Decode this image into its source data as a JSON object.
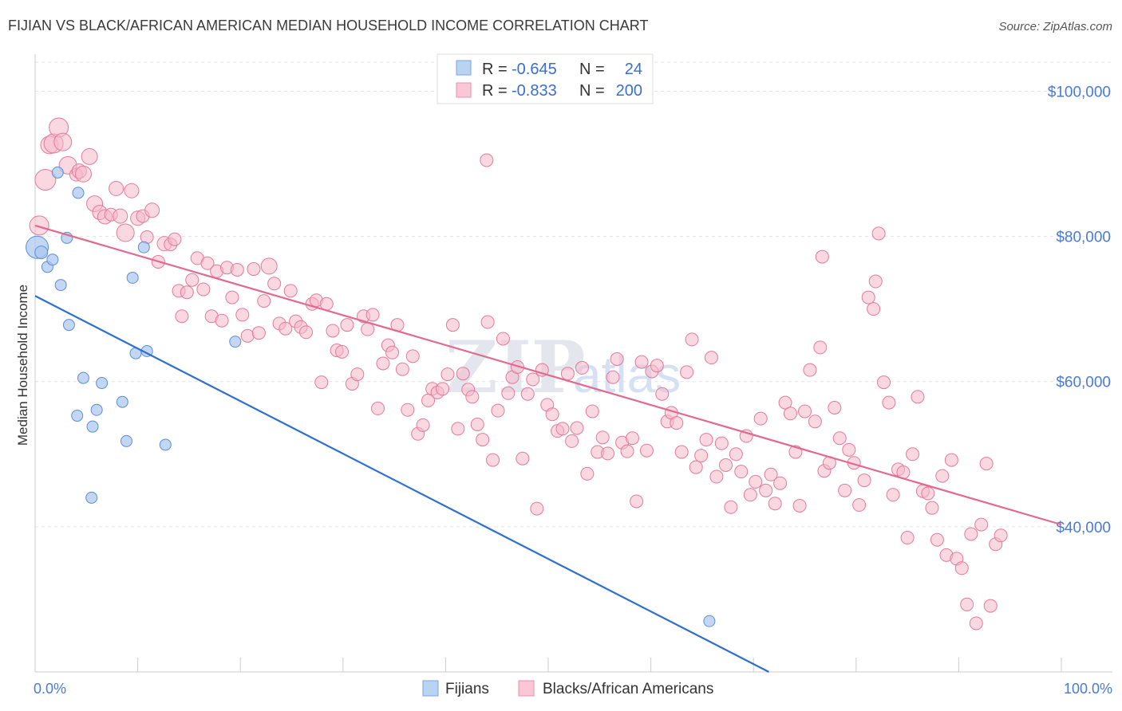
{
  "title": "FIJIAN VS BLACK/AFRICAN AMERICAN MEDIAN HOUSEHOLD INCOME CORRELATION CHART",
  "source": "Source: ZipAtlas.com",
  "watermark": {
    "zip": "ZIP",
    "atlas": "atlas"
  },
  "colors": {
    "fijians_fill": "#a9c6ef",
    "fijians_stroke": "#5b8fd6",
    "fijians_line": "#2f6fd0",
    "black_fill": "#f5b8cb",
    "black_stroke": "#e27a9c",
    "black_line": "#e2698f",
    "tick_text": "#4a7bd0"
  },
  "legend": {
    "rows": [
      {
        "r_label": "R =",
        "r_value": "-0.645",
        "n_label": "N =",
        "n_value": "24"
      },
      {
        "r_label": "R =",
        "r_value": "-0.833",
        "n_label": "N =",
        "n_value": "200"
      }
    ]
  },
  "bottom_legend": {
    "fijians": "Fijians",
    "black": "Blacks/African Americans"
  },
  "chart_data": {
    "type": "scatter",
    "ylabel": "Median Household Income",
    "xlim": [
      0,
      100
    ],
    "ylim": [
      20000,
      104000
    ],
    "y_ticks": [
      {
        "value": 40000,
        "label": "$40,000"
      },
      {
        "value": 60000,
        "label": "$60,000"
      },
      {
        "value": 80000,
        "label": "$80,000"
      },
      {
        "value": 100000,
        "label": "$100,000"
      }
    ],
    "x_tick_labels": {
      "min": "0.0%",
      "max": "100.0%"
    },
    "grid": true,
    "series": [
      {
        "name": "Fijians",
        "r": -0.645,
        "n": 24,
        "trend": {
          "x": [
            0,
            71.5
          ],
          "y": [
            71800,
            20000
          ]
        },
        "points": [
          [
            0.2,
            78.5,
            14
          ],
          [
            0.6,
            77.8,
            8
          ],
          [
            1.2,
            75.8,
            7
          ],
          [
            1.7,
            76.8,
            7
          ],
          [
            2.2,
            88.8,
            7
          ],
          [
            2.5,
            73.3,
            7
          ],
          [
            3.1,
            79.8,
            7
          ],
          [
            3.3,
            67.8,
            7
          ],
          [
            4.1,
            55.3,
            7
          ],
          [
            4.2,
            86.0,
            7
          ],
          [
            4.7,
            60.5,
            7
          ],
          [
            5.5,
            44.0,
            7
          ],
          [
            5.6,
            53.8,
            7
          ],
          [
            6.0,
            56.1,
            7
          ],
          [
            6.5,
            59.8,
            7
          ],
          [
            8.5,
            57.2,
            7
          ],
          [
            8.9,
            51.8,
            7
          ],
          [
            9.5,
            74.3,
            7
          ],
          [
            9.8,
            63.9,
            7
          ],
          [
            10.6,
            78.5,
            7
          ],
          [
            10.9,
            64.2,
            7
          ],
          [
            12.7,
            51.3,
            7
          ],
          [
            19.5,
            65.5,
            7
          ],
          [
            65.7,
            27.0,
            7
          ]
        ]
      },
      {
        "name": "Blacks/African Americans",
        "r": -0.833,
        "n": 200,
        "trend": {
          "x": [
            0,
            100
          ],
          "y": [
            81500,
            40300
          ]
        },
        "points": [
          [
            0.4,
            81.5,
            12
          ],
          [
            1.0,
            87.8,
            13
          ],
          [
            1.4,
            92.6,
            11
          ],
          [
            1.8,
            92.8,
            12
          ],
          [
            2.3,
            95.0,
            12
          ],
          [
            2.7,
            93.0,
            11
          ],
          [
            3.2,
            89.8,
            11
          ],
          [
            4.0,
            88.5,
            8
          ],
          [
            4.3,
            89.0,
            9
          ],
          [
            4.7,
            88.6,
            10
          ],
          [
            5.3,
            91.0,
            10
          ],
          [
            5.8,
            84.5,
            10
          ],
          [
            6.3,
            83.3,
            9
          ],
          [
            6.8,
            82.7,
            9
          ],
          [
            7.4,
            83.0,
            8
          ],
          [
            7.9,
            86.6,
            9
          ],
          [
            8.3,
            82.8,
            9
          ],
          [
            8.8,
            80.5,
            11
          ],
          [
            9.4,
            86.3,
            9
          ],
          [
            10.0,
            82.5,
            9
          ],
          [
            10.5,
            82.8,
            8
          ],
          [
            10.9,
            79.9,
            8
          ],
          [
            11.4,
            83.6,
            9
          ],
          [
            12.0,
            76.5,
            8
          ],
          [
            12.6,
            79.0,
            9
          ],
          [
            13.2,
            78.9,
            8
          ],
          [
            13.6,
            79.6,
            8
          ],
          [
            14.0,
            72.5,
            8
          ],
          [
            14.3,
            69.0,
            8
          ],
          [
            14.8,
            72.3,
            8
          ],
          [
            15.3,
            74.0,
            8
          ],
          [
            15.8,
            77.0,
            8
          ],
          [
            16.4,
            72.7,
            8
          ],
          [
            16.8,
            76.3,
            8
          ],
          [
            17.2,
            69.0,
            8
          ],
          [
            17.7,
            75.2,
            8
          ],
          [
            18.2,
            68.4,
            8
          ],
          [
            18.7,
            75.7,
            8
          ],
          [
            19.2,
            71.6,
            8
          ],
          [
            19.7,
            75.4,
            8
          ],
          [
            20.2,
            69.2,
            8
          ],
          [
            20.7,
            66.3,
            8
          ],
          [
            21.3,
            75.5,
            8
          ],
          [
            21.8,
            66.7,
            8
          ],
          [
            22.3,
            71.1,
            8
          ],
          [
            22.8,
            75.9,
            10
          ],
          [
            23.3,
            73.5,
            8
          ],
          [
            23.8,
            68.0,
            8
          ],
          [
            24.4,
            67.3,
            8
          ],
          [
            24.9,
            72.5,
            8
          ],
          [
            25.4,
            68.3,
            8
          ],
          [
            25.9,
            67.5,
            8
          ],
          [
            26.4,
            66.8,
            8
          ],
          [
            27.0,
            70.7,
            8
          ],
          [
            27.4,
            71.2,
            8
          ],
          [
            27.9,
            59.9,
            8
          ],
          [
            28.4,
            70.7,
            8
          ],
          [
            29.0,
            67.0,
            8
          ],
          [
            29.4,
            64.3,
            8
          ],
          [
            29.9,
            64.1,
            8
          ],
          [
            30.4,
            67.8,
            8
          ],
          [
            30.9,
            59.7,
            8
          ],
          [
            31.4,
            61.0,
            8
          ],
          [
            32.0,
            69.0,
            8
          ],
          [
            32.4,
            67.2,
            8
          ],
          [
            32.9,
            69.2,
            8
          ],
          [
            33.4,
            56.3,
            8
          ],
          [
            33.9,
            62.5,
            8
          ],
          [
            34.4,
            65.0,
            8
          ],
          [
            34.8,
            64.0,
            8
          ],
          [
            35.3,
            67.8,
            8
          ],
          [
            35.8,
            61.7,
            8
          ],
          [
            36.3,
            56.1,
            8
          ],
          [
            36.8,
            63.5,
            8
          ],
          [
            37.3,
            52.8,
            8
          ],
          [
            37.8,
            54.0,
            8
          ],
          [
            38.3,
            57.4,
            8
          ],
          [
            38.7,
            59.0,
            8
          ],
          [
            39.2,
            58.5,
            8
          ],
          [
            39.7,
            59.0,
            8
          ],
          [
            40.2,
            61.0,
            8
          ],
          [
            40.7,
            67.8,
            8
          ],
          [
            41.2,
            53.5,
            8
          ],
          [
            41.7,
            61.1,
            8
          ],
          [
            42.2,
            58.9,
            8
          ],
          [
            42.6,
            57.9,
            8
          ],
          [
            43.1,
            54.1,
            8
          ],
          [
            43.6,
            52.0,
            8
          ],
          [
            44.1,
            68.2,
            8
          ],
          [
            44.6,
            49.2,
            8
          ],
          [
            45.1,
            56.0,
            8
          ],
          [
            45.6,
            65.9,
            8
          ],
          [
            46.1,
            58.4,
            8
          ],
          [
            46.5,
            60.6,
            8
          ],
          [
            47.0,
            62.0,
            8
          ],
          [
            47.5,
            49.4,
            8
          ],
          [
            48.0,
            58.3,
            8
          ],
          [
            48.5,
            60.3,
            8
          ],
          [
            48.9,
            42.5,
            8
          ],
          [
            49.4,
            61.6,
            8
          ],
          [
            49.9,
            56.8,
            8
          ],
          [
            50.4,
            55.5,
            8
          ],
          [
            50.9,
            53.2,
            8
          ],
          [
            51.4,
            53.5,
            8
          ],
          [
            51.9,
            61.1,
            8
          ],
          [
            52.3,
            51.8,
            8
          ],
          [
            52.8,
            53.6,
            8
          ],
          [
            53.3,
            61.9,
            8
          ],
          [
            53.8,
            47.3,
            8
          ],
          [
            54.3,
            55.9,
            8
          ],
          [
            54.8,
            50.3,
            8
          ],
          [
            55.3,
            52.3,
            8
          ],
          [
            55.8,
            50.1,
            8
          ],
          [
            56.3,
            60.6,
            8
          ],
          [
            56.7,
            63.1,
            8
          ],
          [
            57.2,
            51.6,
            8
          ],
          [
            57.7,
            50.4,
            8
          ],
          [
            58.2,
            52.2,
            8
          ],
          [
            58.6,
            43.5,
            8
          ],
          [
            59.1,
            62.7,
            8
          ],
          [
            59.6,
            50.5,
            8
          ],
          [
            60.1,
            61.4,
            8
          ],
          [
            60.6,
            62.2,
            8
          ],
          [
            61.1,
            58.3,
            8
          ],
          [
            61.6,
            54.5,
            8
          ],
          [
            62.0,
            55.7,
            8
          ],
          [
            62.5,
            54.3,
            8
          ],
          [
            63.0,
            50.3,
            8
          ],
          [
            63.5,
            61.3,
            8
          ],
          [
            64.0,
            65.8,
            8
          ],
          [
            64.4,
            48.2,
            8
          ],
          [
            64.9,
            49.8,
            8
          ],
          [
            65.4,
            52.0,
            8
          ],
          [
            65.9,
            63.3,
            8
          ],
          [
            66.4,
            46.9,
            8
          ],
          [
            66.9,
            51.5,
            8
          ],
          [
            67.3,
            48.5,
            8
          ],
          [
            67.8,
            42.7,
            8
          ],
          [
            68.3,
            50.0,
            8
          ],
          [
            68.8,
            47.6,
            8
          ],
          [
            69.3,
            52.5,
            8
          ],
          [
            69.7,
            44.4,
            8
          ],
          [
            70.2,
            46.2,
            8
          ],
          [
            70.7,
            54.9,
            8
          ],
          [
            71.2,
            45.0,
            8
          ],
          [
            71.7,
            47.2,
            8
          ],
          [
            72.1,
            43.2,
            8
          ],
          [
            72.6,
            46.0,
            8
          ],
          [
            73.1,
            57.1,
            8
          ],
          [
            73.6,
            55.6,
            8
          ],
          [
            74.1,
            50.3,
            8
          ],
          [
            74.5,
            42.9,
            8
          ],
          [
            75.0,
            55.9,
            8
          ],
          [
            75.5,
            61.6,
            8
          ],
          [
            76.0,
            54.5,
            8
          ],
          [
            76.5,
            64.7,
            8
          ],
          [
            76.9,
            47.7,
            8
          ],
          [
            77.4,
            48.8,
            8
          ],
          [
            77.9,
            56.4,
            8
          ],
          [
            78.4,
            52.2,
            8
          ],
          [
            78.9,
            45.0,
            8
          ],
          [
            79.3,
            50.6,
            8
          ],
          [
            79.8,
            48.8,
            8
          ],
          [
            80.3,
            43.0,
            8
          ],
          [
            80.8,
            46.4,
            8
          ],
          [
            81.2,
            71.6,
            8
          ],
          [
            81.7,
            70.0,
            8
          ],
          [
            82.2,
            80.4,
            8
          ],
          [
            82.7,
            59.9,
            8
          ],
          [
            83.2,
            57.1,
            8
          ],
          [
            83.6,
            44.4,
            8
          ],
          [
            84.1,
            47.9,
            8
          ],
          [
            84.6,
            47.5,
            8
          ],
          [
            85.0,
            38.5,
            8
          ],
          [
            85.5,
            50.0,
            8
          ],
          [
            86.0,
            57.9,
            8
          ],
          [
            86.5,
            44.9,
            8
          ],
          [
            87.0,
            44.6,
            8
          ],
          [
            87.4,
            42.6,
            8
          ],
          [
            87.9,
            38.2,
            8
          ],
          [
            88.4,
            47.0,
            8
          ],
          [
            88.8,
            36.1,
            8
          ],
          [
            89.3,
            49.2,
            8
          ],
          [
            89.8,
            35.6,
            8
          ],
          [
            90.3,
            34.3,
            8
          ],
          [
            90.8,
            29.3,
            8
          ],
          [
            91.2,
            39.0,
            8
          ],
          [
            91.7,
            26.7,
            8
          ],
          [
            92.2,
            40.3,
            8
          ],
          [
            92.7,
            48.7,
            8
          ],
          [
            93.1,
            29.1,
            8
          ],
          [
            93.6,
            37.6,
            8
          ],
          [
            94.1,
            38.8,
            8
          ],
          [
            76.7,
            77.2,
            8
          ],
          [
            81.9,
            73.8,
            8
          ],
          [
            44.0,
            90.5,
            8
          ]
        ]
      }
    ]
  }
}
